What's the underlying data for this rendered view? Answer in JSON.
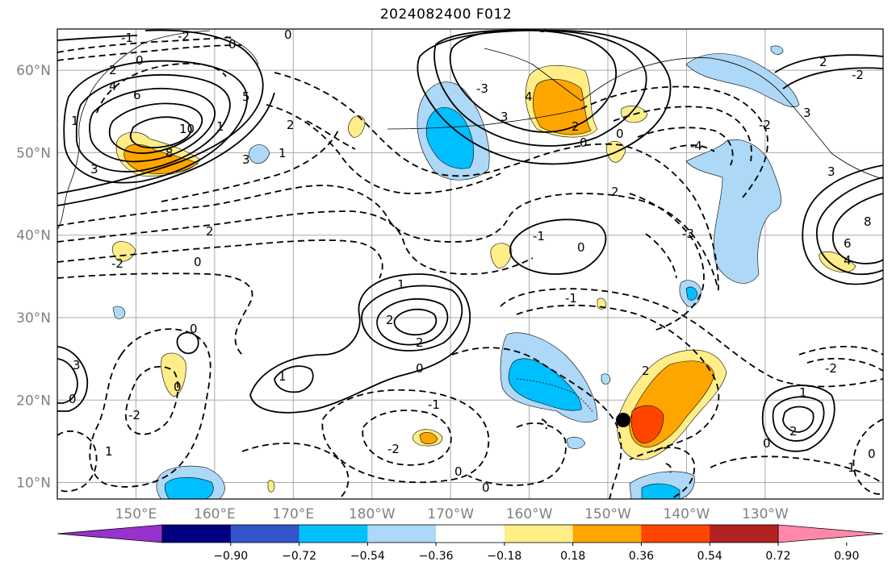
{
  "title": "2024082400 F012",
  "map": {
    "lon_range": [
      140,
      245
    ],
    "lat_range": [
      8,
      65
    ],
    "projection": "plate carree",
    "gridlines": true,
    "lat_labels": [
      "10°N",
      "20°N",
      "30°N",
      "40°N",
      "50°N",
      "60°N"
    ],
    "lon_labels": [
      "150°E",
      "160°E",
      "170°E",
      "180°W",
      "170°W",
      "160°W",
      "150°W",
      "140°W",
      "130°W"
    ],
    "marker": {
      "name": "storm-position",
      "lon": 209,
      "lat": 17.5,
      "color": "#000000"
    },
    "contours": {
      "style": "solid = positive, dashed = negative",
      "labels_visible": [
        "-1",
        "-2",
        "-3",
        "-4",
        "0",
        "1",
        "2",
        "3",
        "4",
        "6",
        "8",
        "10"
      ]
    }
  },
  "colorbar": {
    "ticks": [
      "−0.90",
      "−0.72",
      "−0.54",
      "−0.36",
      "−0.18",
      "0.18",
      "0.36",
      "0.54",
      "0.72",
      "0.90"
    ],
    "colors": [
      "#9932cc",
      "#000080",
      "#3355cc",
      "#00bfff",
      "#add8f7",
      "#ffffff",
      "#ffee88",
      "#ffa500",
      "#ff4500",
      "#b22222",
      "#ff88aa"
    ],
    "extend": "both"
  },
  "colors": {
    "shade_neg_light": "#add8f7",
    "shade_neg": "#00bfff",
    "shade_pos_light": "#ffee88",
    "shade_pos": "#ffa500",
    "shade_pos_strong": "#ff4500",
    "grid": "#aaaaaa",
    "label_grey": "#808080"
  }
}
